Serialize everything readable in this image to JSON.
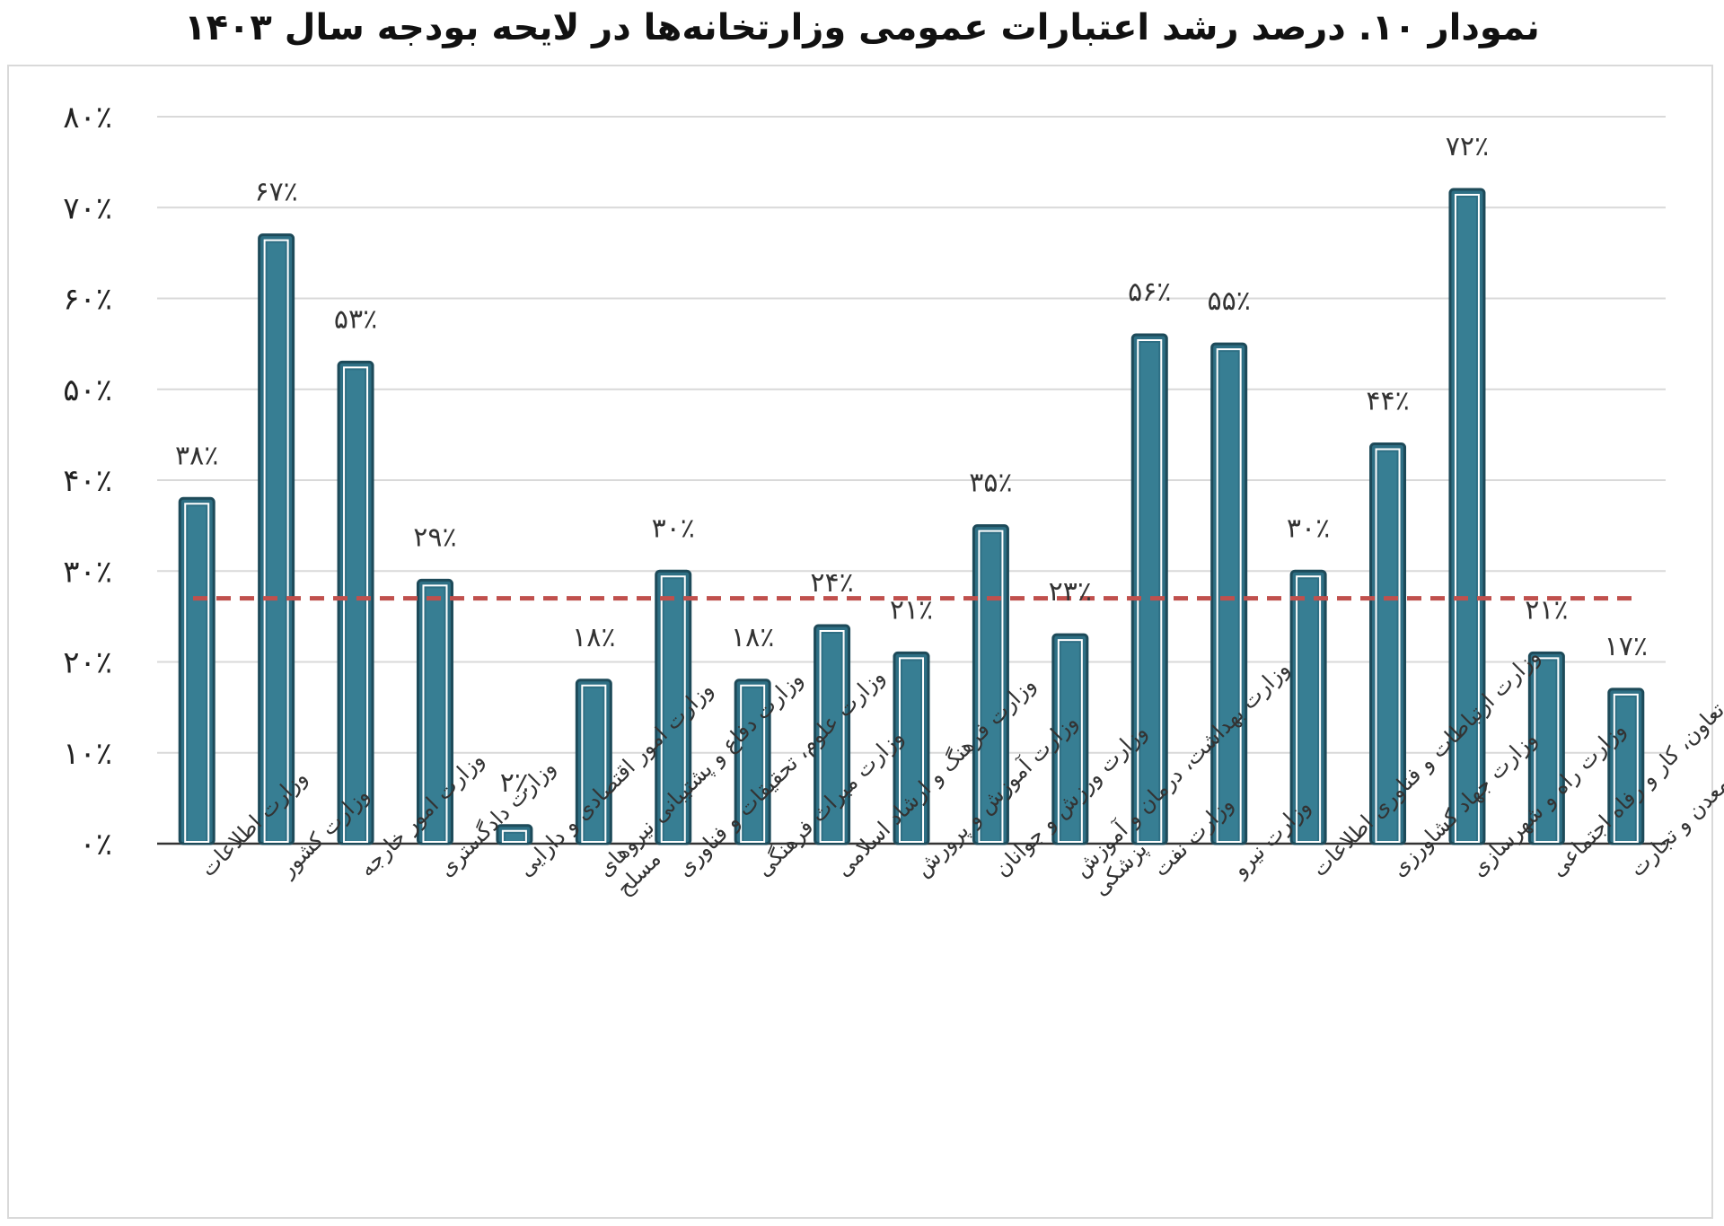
{
  "chart_data": {
    "type": "bar",
    "title": "نمودار ۱۰. درصد رشد اعتبارات عمومی وزارتخانه‌ها در لایحه بودجه سال ۱۴۰۳",
    "xlabel": "",
    "ylabel": "",
    "ylim": [
      0,
      80
    ],
    "yticks": [
      0,
      10,
      20,
      30,
      40,
      50,
      60,
      70,
      80
    ],
    "ytick_labels": [
      "۰٪",
      "۱۰٪",
      "۲۰٪",
      "۳۰٪",
      "۴۰٪",
      "۵۰٪",
      "۶۰٪",
      "۷۰٪",
      "۸۰٪"
    ],
    "grid": true,
    "legend": "none",
    "categories": [
      [
        "وزارت اطلاعات"
      ],
      [
        "وزارت کشور"
      ],
      [
        "وزارت امور خارجه"
      ],
      [
        "وزارت دادگستری"
      ],
      [
        "وزارت امور اقتصادی و دارایی"
      ],
      [
        "وزارت دفاع و پشتیبانی نیروهای",
        "مسلح"
      ],
      [
        "وزارت علوم، تحقیقات و فناوری"
      ],
      [
        "وزارت میراث فرهنگی"
      ],
      [
        "وزارت فرهنگ و ارشاد اسلامی"
      ],
      [
        "وزارت آموزش و پرورش"
      ],
      [
        "وزارت ورزش و جوانان"
      ],
      [
        "وزارت بهداشت، درمان و آموزش",
        "پزشکی"
      ],
      [
        "وزارت نفت"
      ],
      [
        "وزارت نیرو"
      ],
      [
        "وزارت ارتباطات و فناوری اطلاعات"
      ],
      [
        "وزارت جهاد کشاورزی"
      ],
      [
        "وزارت راه و شهرسازی"
      ],
      [
        "وزارت تعاون، کار و رفاه اجتماعی"
      ],
      [
        "وزارت صنعت، معدن و تجارت"
      ]
    ],
    "values": [
      38,
      67,
      53,
      29,
      2,
      18,
      30,
      18,
      24,
      21,
      35,
      23,
      56,
      55,
      30,
      44,
      72,
      21,
      17
    ],
    "data_labels": [
      "۳۸٪",
      "۶۷٪",
      "۵۳٪",
      "۲۹٪",
      "۲٪",
      "۱۸٪",
      "۳۰٪",
      "۱۸٪",
      "۲۴٪",
      "۲۱٪",
      "۳۵٪",
      "۲۳٪",
      "۵۶٪",
      "۵۵٪",
      "۳۰٪",
      "۴۴٪",
      "۷۲٪",
      "۲۱٪",
      "۱۷٪"
    ],
    "reference_line": {
      "value": 27,
      "style": "dashed"
    },
    "colors": {
      "bar_fill": "#2e6f84",
      "bar_edge": "#1d4a59",
      "bar_outline": "#ffffff",
      "bar_inner": "#3f8aa1",
      "grid": "#d9d9d9",
      "axis": "#333333",
      "reference_line": "#c0504d"
    }
  }
}
